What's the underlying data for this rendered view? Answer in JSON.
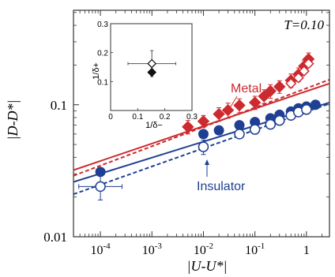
{
  "chart_data": [
    {
      "type": "scatter",
      "xscale": "log",
      "yscale": "log",
      "xlim": [
        3e-05,
        2.8
      ],
      "ylim": [
        0.01,
        0.52
      ],
      "xlabel": "|U-U*|",
      "ylabel": "|D-D*|",
      "xticks": [
        "10^-4",
        "10^-3",
        "10^-2",
        "10^-1",
        "1"
      ],
      "yticks": [
        "0.01",
        "0.1"
      ],
      "title": "T=0.10",
      "annotations": [
        "Metal",
        "Insulator"
      ],
      "colors": {
        "metal": "#cc2a2f",
        "insulator": "#1f3f93"
      },
      "series": [
        {
          "name": "Metal",
          "marker": "diamond-filled",
          "points": [
            {
              "x": 0.005,
              "y": 0.068,
              "yerr": 0.008
            },
            {
              "x": 0.01,
              "y": 0.075,
              "yerr": 0.008
            },
            {
              "x": 0.02,
              "y": 0.085,
              "yerr": 0.01
            },
            {
              "x": 0.03,
              "y": 0.091,
              "yerr": 0.012
            },
            {
              "x": 0.05,
              "y": 0.099,
              "yerr": 0.012
            },
            {
              "x": 0.1,
              "y": 0.104,
              "yerr": 0.012
            },
            {
              "x": 0.15,
              "y": 0.116,
              "yerr": 0.014
            },
            {
              "x": 0.2,
              "y": 0.127,
              "yerr": 0.015
            },
            {
              "x": 0.3,
              "y": 0.137,
              "yerr": 0.015
            },
            {
              "x": 0.5,
              "y": 0.153,
              "yerr": 0.018
            },
            {
              "x": 0.7,
              "y": 0.17,
              "yerr": 0.02
            },
            {
              "x": 0.9,
              "y": 0.196,
              "yerr": 0.022
            },
            {
              "x": 1.1,
              "y": 0.222,
              "yerr": 0.025
            }
          ]
        },
        {
          "name": "Metal (open)",
          "marker": "diamond-open",
          "points": [
            {
              "x": 0.5,
              "y": 0.145
            },
            {
              "x": 0.7,
              "y": 0.16
            },
            {
              "x": 0.9,
              "y": 0.18
            },
            {
              "x": 1.1,
              "y": 0.205
            }
          ]
        },
        {
          "name": "Insulator",
          "marker": "circle-filled",
          "points": [
            {
              "x": 0.0001,
              "y": 0.031
            },
            {
              "x": 0.01,
              "y": 0.06
            },
            {
              "x": 0.02,
              "y": 0.064
            },
            {
              "x": 0.05,
              "y": 0.07
            },
            {
              "x": 0.1,
              "y": 0.074
            },
            {
              "x": 0.2,
              "y": 0.079
            },
            {
              "x": 0.3,
              "y": 0.084
            },
            {
              "x": 0.5,
              "y": 0.089
            },
            {
              "x": 0.7,
              "y": 0.094
            },
            {
              "x": 1.0,
              "y": 0.097
            },
            {
              "x": 1.5,
              "y": 0.1
            }
          ]
        },
        {
          "name": "Insulator (open)",
          "marker": "circle-open",
          "points": [
            {
              "x": 0.0001,
              "y": 0.024,
              "yerr": 0.005,
              "xerr_log": 0.42
            },
            {
              "x": 0.01,
              "y": 0.048,
              "yerr": 0.006
            },
            {
              "x": 0.05,
              "y": 0.06
            },
            {
              "x": 0.1,
              "y": 0.065
            },
            {
              "x": 0.2,
              "y": 0.071
            },
            {
              "x": 0.3,
              "y": 0.076
            },
            {
              "x": 0.5,
              "y": 0.083
            },
            {
              "x": 0.7,
              "y": 0.088
            },
            {
              "x": 1.0,
              "y": 0.092
            }
          ]
        }
      ],
      "fit_lines": [
        {
          "style": "solid",
          "color": "metal",
          "x": [
            3e-05,
            2.8
          ],
          "y": [
            0.032,
            0.145
          ]
        },
        {
          "style": "dashed",
          "color": "metal",
          "x": [
            3e-05,
            2.8
          ],
          "y": [
            0.029,
            0.155
          ]
        },
        {
          "style": "solid",
          "color": "insulator",
          "x": [
            3e-05,
            2.8
          ],
          "y": [
            0.026,
            0.104
          ]
        },
        {
          "style": "dashed",
          "color": "insulator",
          "x": [
            3e-05,
            2.8
          ],
          "y": [
            0.021,
            0.102
          ]
        }
      ]
    },
    {
      "type": "scatter",
      "xlim": [
        0,
        0.3
      ],
      "ylim": [
        0,
        0.3
      ],
      "xticks": [
        "0",
        "0.1",
        "0.2",
        "0.3"
      ],
      "yticks": [
        "0",
        "0.1",
        "0.2",
        "0.3"
      ],
      "xlabel": "1/δ−",
      "ylabel": "1/δ+",
      "points": [
        {
          "marker": "diamond-open",
          "x": 0.152,
          "y": 0.162,
          "xerr": 0.088,
          "yerr": 0.045
        },
        {
          "marker": "diamond-filled",
          "x": 0.152,
          "y": 0.132
        }
      ]
    }
  ]
}
